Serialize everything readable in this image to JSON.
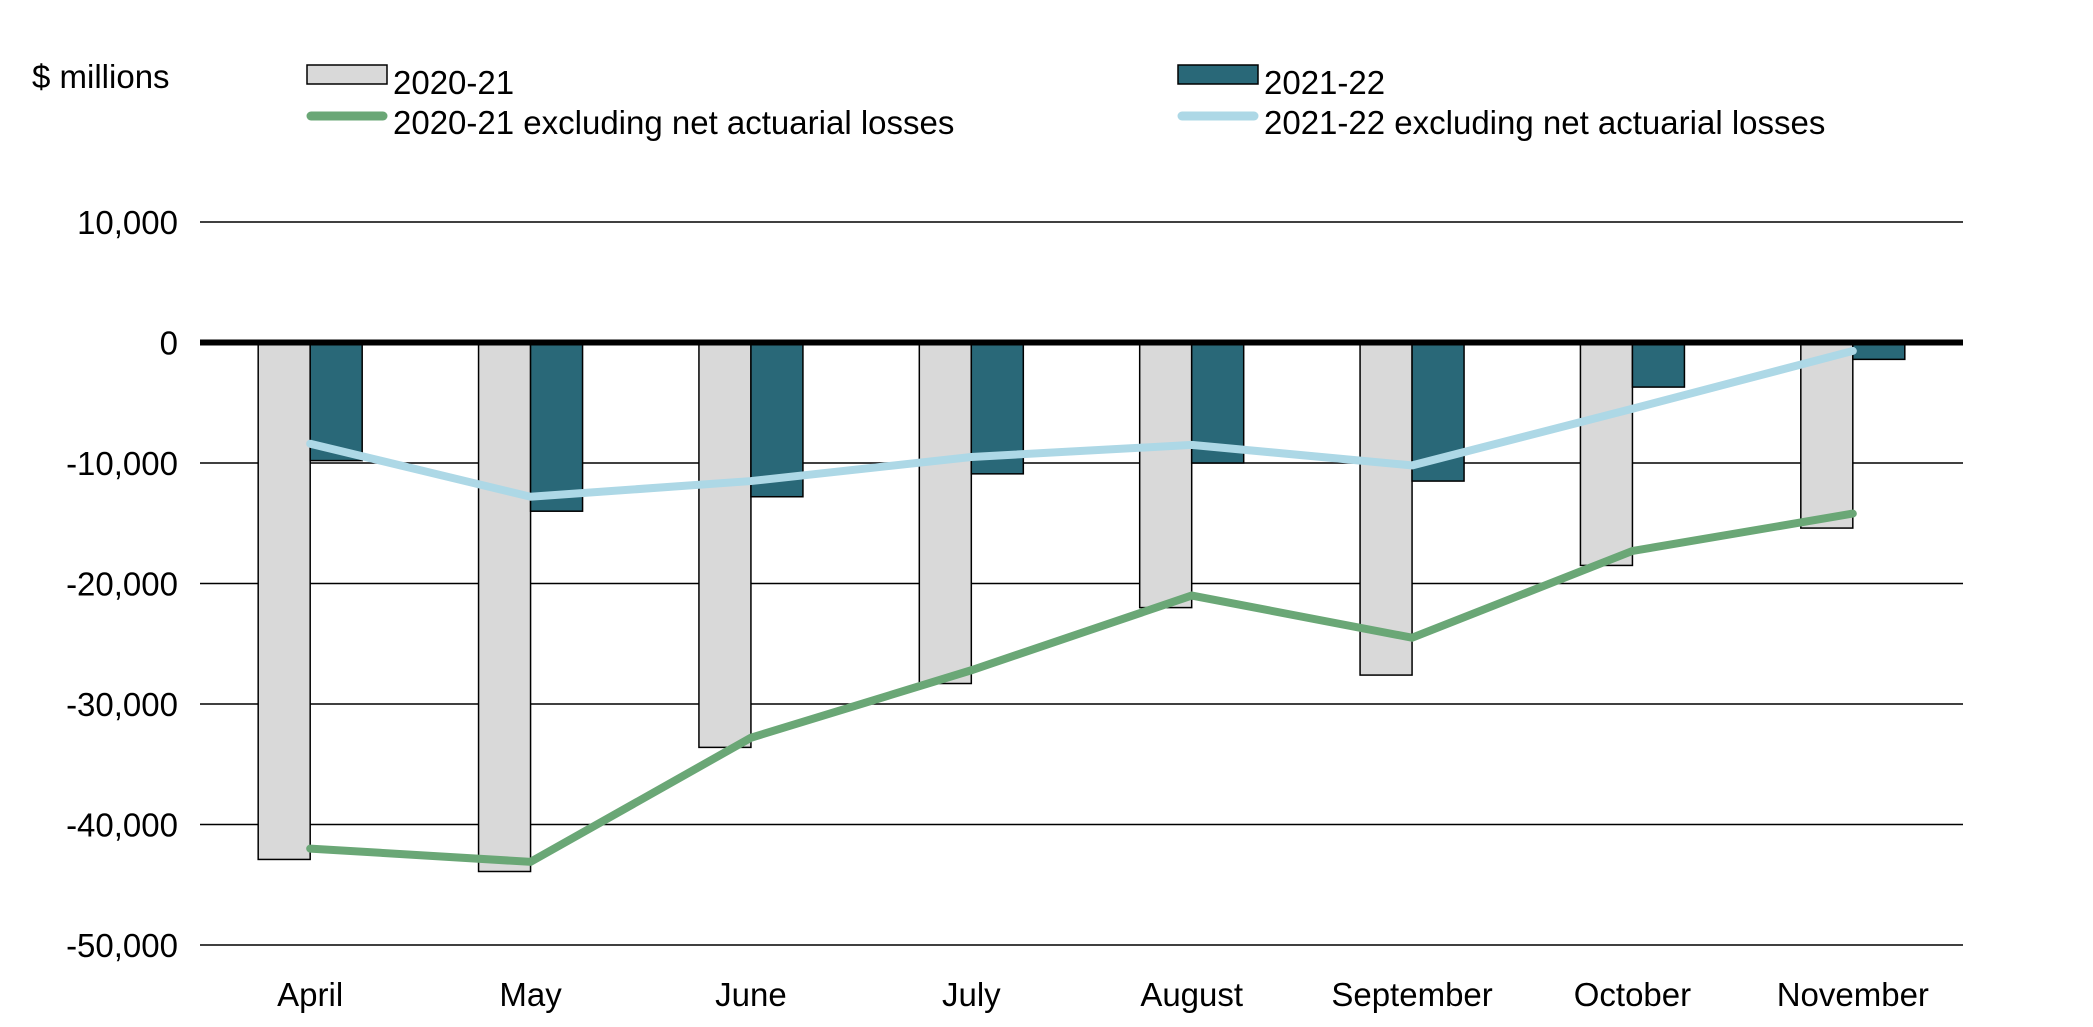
{
  "chart_data": {
    "type": "bar",
    "title": "",
    "ylabel": "$ millions",
    "xlabel": "",
    "ylim": [
      -50000,
      10000
    ],
    "yticks": [
      10000,
      0,
      -10000,
      -20000,
      -30000,
      -40000,
      -50000
    ],
    "ytick_labels": [
      "10,000",
      "0",
      "-10,000",
      "-20,000",
      "-30,000",
      "-40,000",
      "-50,000"
    ],
    "grid": true,
    "legend_position": "top",
    "categories": [
      "April",
      "May",
      "June",
      "July",
      "August",
      "September",
      "October",
      "November"
    ],
    "series": [
      {
        "name": "2020-21",
        "kind": "bar",
        "color": "#d9d9d9",
        "values": [
          -42900,
          -43900,
          -33600,
          -28300,
          -22000,
          -27600,
          -18500,
          -15400
        ]
      },
      {
        "name": "2021-22",
        "kind": "bar",
        "color": "#296878",
        "values": [
          -9800,
          -14000,
          -12800,
          -10900,
          -10000,
          -11500,
          -3700,
          -1400
        ]
      },
      {
        "name": "2020-21 excluding net actuarial losses",
        "kind": "line",
        "color": "#6aa776",
        "values": [
          -42000,
          -43100,
          -32800,
          -27200,
          -21000,
          -24500,
          -17300,
          -14200
        ]
      },
      {
        "name": "2021-22 excluding net actuarial losses",
        "kind": "line",
        "color": "#add8e6",
        "values": [
          -8400,
          -12800,
          -11500,
          -9500,
          -8500,
          -10200,
          -5500,
          -700
        ]
      }
    ]
  }
}
